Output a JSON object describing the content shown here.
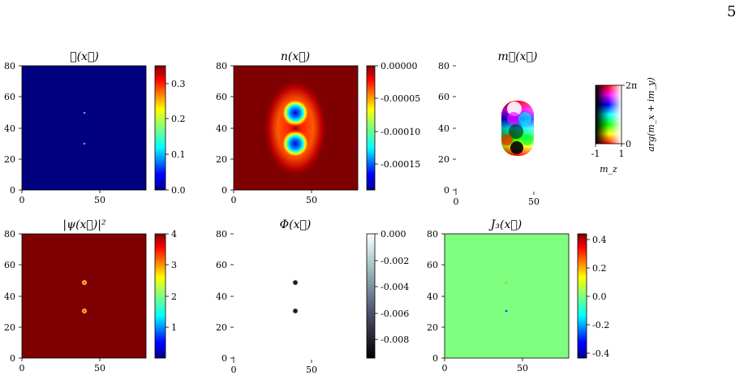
{
  "page_number": "5",
  "colors": {
    "jet_bg_blue": "#00007f",
    "jet_bg_red": "#7f0000",
    "green_bg": "#7fff7f",
    "ring": "#ff8c00"
  },
  "chart_data": [
    {
      "type": "heatmap",
      "title": "ℰ(x⃗)",
      "xlim": [
        0,
        80
      ],
      "ylim": [
        0,
        80
      ],
      "xticks": [
        "0",
        "50"
      ],
      "yticks": [
        "0",
        "20",
        "40",
        "60",
        "80"
      ],
      "colorbar": {
        "ticks": [
          "0.0",
          "0.1",
          "0.2",
          "0.3"
        ],
        "range": [
          0,
          0.35
        ],
        "cmap": "jet"
      }
    },
    {
      "type": "heatmap",
      "title": "n(x⃗)",
      "xlim": [
        0,
        80
      ],
      "ylim": [
        0,
        80
      ],
      "xticks": [
        "0",
        "50"
      ],
      "yticks": [
        "0",
        "20",
        "40",
        "60",
        "80"
      ],
      "colorbar": {
        "ticks": [
          "0.00000",
          "-0.00005",
          "-0.00010",
          "-0.00015"
        ],
        "range": [
          -0.00019,
          0
        ],
        "cmap": "jet"
      }
    },
    {
      "type": "heatmap",
      "title": "m⃗(x⃗)",
      "xlim": [
        0,
        80
      ],
      "ylim": [
        0,
        80
      ],
      "xticks": [
        "0",
        "50"
      ],
      "yticks": [
        "0",
        "20",
        "40",
        "60",
        "80"
      ],
      "colorwheel": {
        "top": "2π",
        "bottom": "0",
        "left": "-1",
        "right": "1",
        "xlabel": "m_z",
        "ylabel": "arg(m_x + im_y)"
      }
    },
    {
      "type": "heatmap",
      "title": "|ψ(x⃗)|²",
      "xlim": [
        0,
        80
      ],
      "ylim": [
        0,
        80
      ],
      "xticks": [
        "0",
        "50"
      ],
      "yticks": [
        "0",
        "20",
        "40",
        "60",
        "80"
      ],
      "colorbar": {
        "ticks": [
          "1",
          "2",
          "3",
          "4"
        ],
        "range": [
          0,
          4
        ],
        "cmap": "jet"
      }
    },
    {
      "type": "heatmap",
      "title": "Φ(x⃗)",
      "xlim": [
        0,
        80
      ],
      "ylim": [
        0,
        80
      ],
      "xticks": [
        "0",
        "50"
      ],
      "yticks": [
        "0",
        "20",
        "40",
        "60",
        "80"
      ],
      "colorbar": {
        "ticks": [
          "0.000",
          "-0.002",
          "-0.004",
          "-0.006",
          "-0.008"
        ],
        "range": [
          -0.0094,
          0
        ],
        "cmap": "bone"
      }
    },
    {
      "type": "heatmap",
      "title": "J₃(x⃗)",
      "xlim": [
        0,
        80
      ],
      "ylim": [
        0,
        80
      ],
      "xticks": [
        "0",
        "50"
      ],
      "yticks": [
        "0",
        "20",
        "40",
        "60",
        "80"
      ],
      "colorbar": {
        "ticks": [
          "0.4",
          "0.2",
          "0.0",
          "-0.2",
          "-0.4"
        ],
        "range": [
          -0.44,
          0.44
        ],
        "cmap": "jet"
      }
    }
  ]
}
